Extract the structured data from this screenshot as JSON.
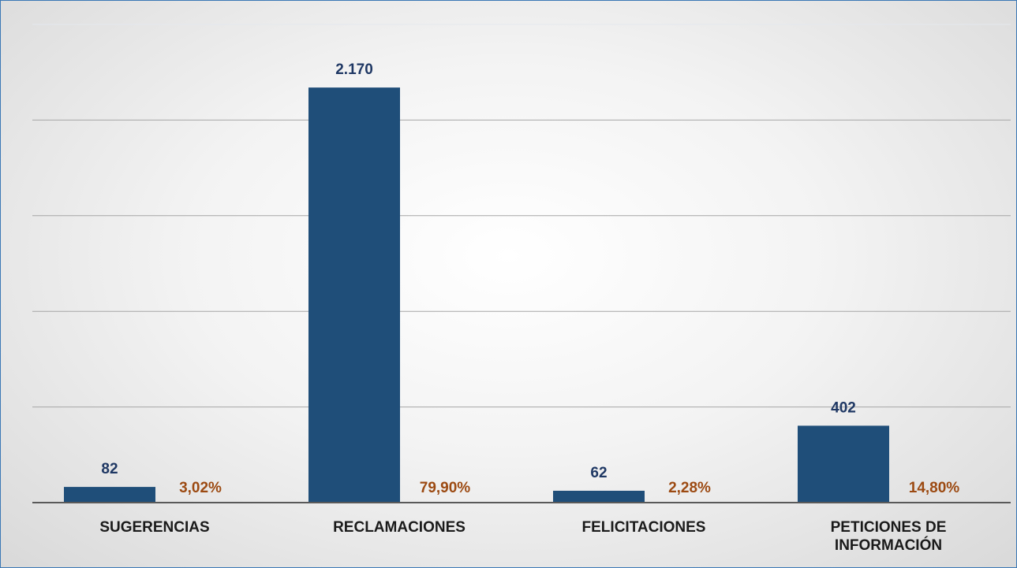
{
  "chart_data": {
    "type": "bar",
    "categories": [
      "SUGERENCIAS",
      "RECLAMACIONES",
      "FELICITACIONES",
      "PETICIONES DE INFORMACIÓN"
    ],
    "values": [
      82,
      2170,
      62,
      402
    ],
    "value_labels": [
      "82",
      "2.170",
      "62",
      "402"
    ],
    "percentages": [
      3.02,
      79.9,
      2.28,
      14.8
    ],
    "percentage_labels": [
      "3,02%",
      "79,90%",
      "2,28%",
      "14,80%"
    ],
    "color": "#1f4e79",
    "ylim": [
      0,
      2500
    ],
    "yticks": [
      0,
      500,
      1000,
      1500,
      2000,
      2500
    ],
    "grid": true
  }
}
